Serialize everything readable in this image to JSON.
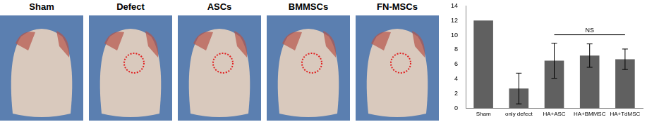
{
  "panels": [
    "Sham",
    "Defect",
    "ASCs",
    "BMMSCs",
    "FN-MSCs"
  ],
  "chart_data": {
    "type": "bar",
    "categories": [
      "Sham",
      "only defect",
      "HA+ASC",
      "HA+BMMSC",
      "HA+TdMSC"
    ],
    "values": [
      12,
      2.7,
      6.5,
      7.2,
      6.7
    ],
    "errors": [
      0,
      2.1,
      2.4,
      1.6,
      1.4
    ],
    "color": "#606060",
    "ylim": [
      0,
      14
    ],
    "yticks": [
      0,
      2,
      4,
      6,
      8,
      10,
      12,
      14
    ],
    "grid": false,
    "annotations": [
      {
        "text": "NS",
        "from": "HA+ASC",
        "to": "HA+TdMSC"
      }
    ]
  }
}
